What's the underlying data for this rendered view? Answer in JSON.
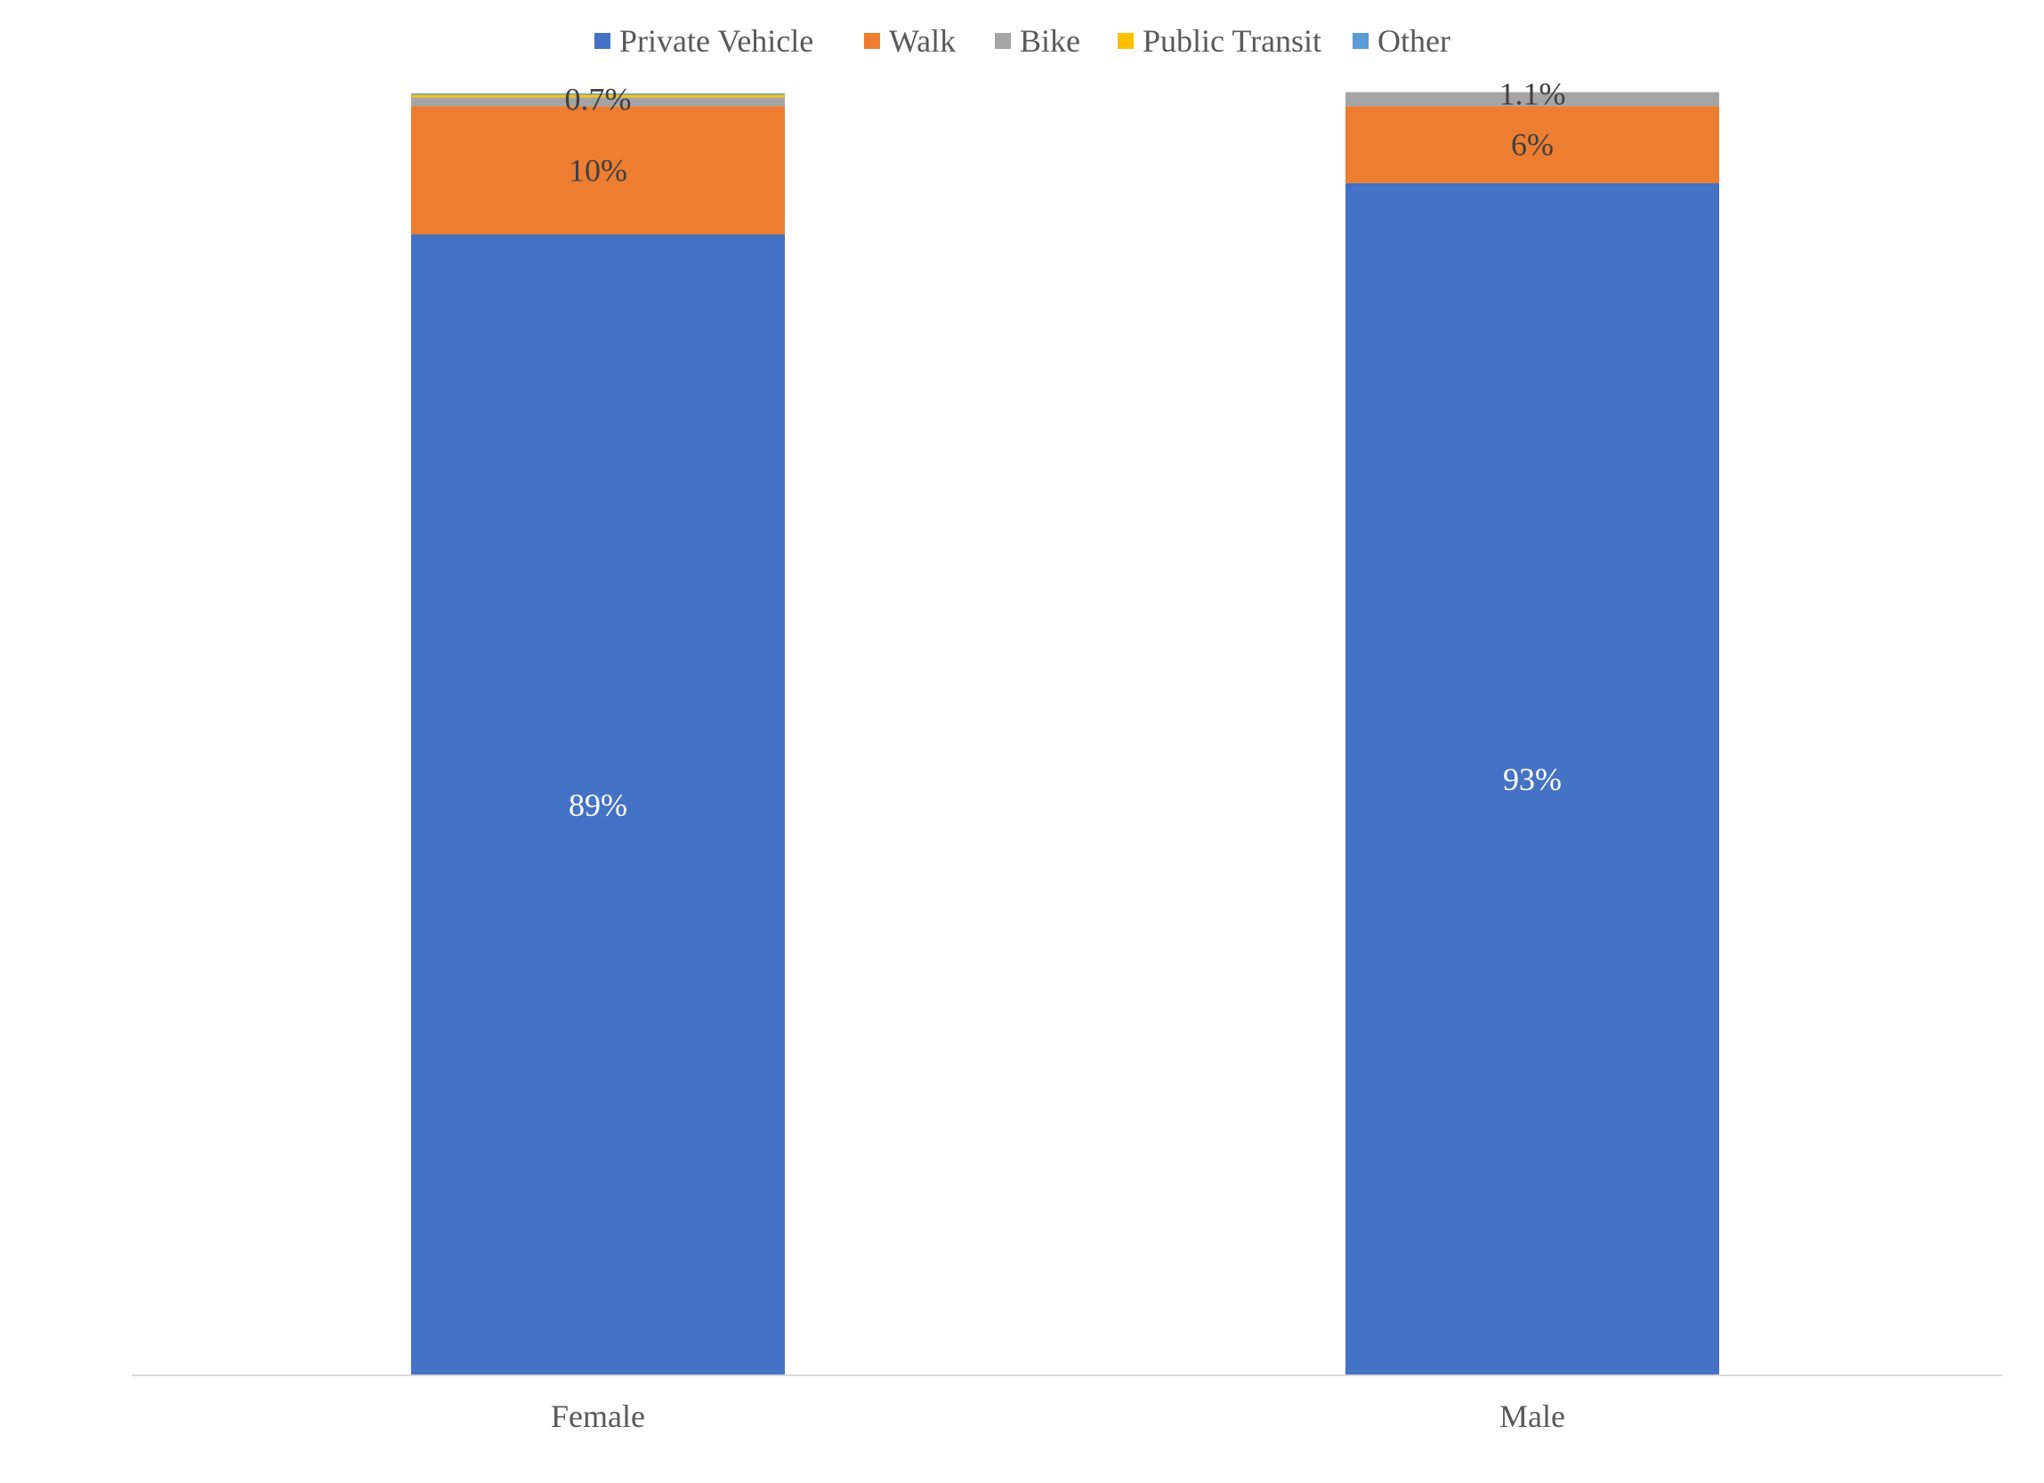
{
  "chart_data": {
    "type": "bar",
    "stacked": true,
    "categories": [
      "Female",
      "Male"
    ],
    "series": [
      {
        "name": "Private Vehicle",
        "color": "#4472C4",
        "values": [
          89,
          93
        ],
        "labels": [
          "89%",
          "93%"
        ],
        "label_color": "#FFFFFF"
      },
      {
        "name": "Walk",
        "color": "#ED7D31",
        "values": [
          10,
          6
        ],
        "labels": [
          "10%",
          "6%"
        ],
        "label_color": "#404040"
      },
      {
        "name": "Bike",
        "color": "#A5A5A5",
        "values": [
          0.7,
          1.1
        ],
        "labels": [
          "0.7%",
          "1.1%"
        ],
        "label_color": "#404040"
      },
      {
        "name": "Public Transit",
        "color": "#FFC000",
        "values": [
          0.2,
          0
        ],
        "labels": [
          "",
          ""
        ],
        "label_color": "#404040"
      },
      {
        "name": "Other",
        "color": "#5B9BD5",
        "values": [
          0.1,
          0
        ],
        "labels": [
          "",
          ""
        ],
        "label_color": "#404040"
      }
    ],
    "ylim": [
      0,
      100
    ],
    "grid": false,
    "legend_position": "top",
    "xlabel": "",
    "ylabel": ""
  }
}
